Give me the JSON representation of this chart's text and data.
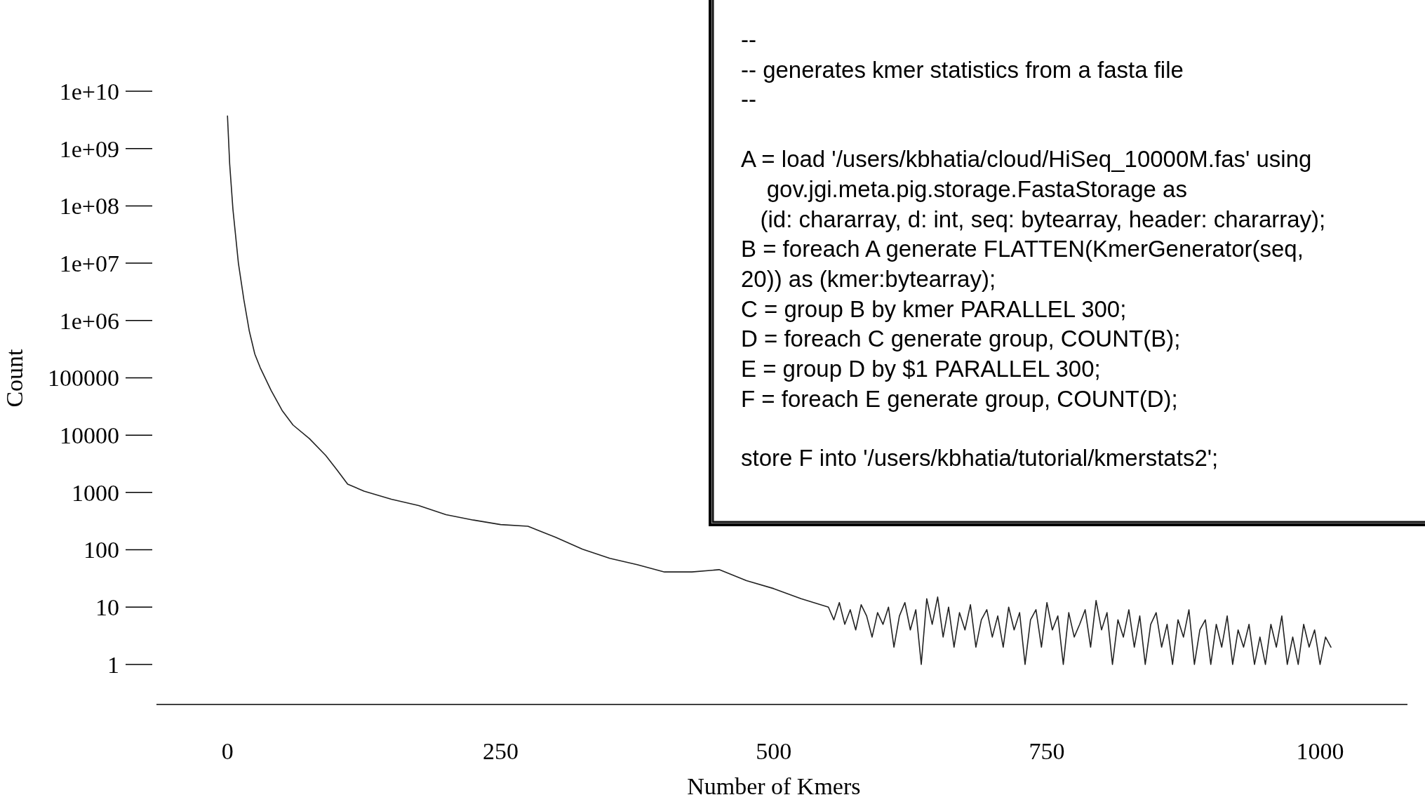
{
  "chart_data": [
    {
      "type": "line",
      "xlabel": "Number of Kmers",
      "ylabel": "Count",
      "log": "y",
      "xlim": [
        -65,
        1080
      ],
      "xticks": [
        0,
        250,
        500,
        750,
        1000
      ],
      "ylim": [
        0.2,
        10000000000
      ],
      "yticks": [
        {
          "value": 1,
          "label": "1"
        },
        {
          "value": 10,
          "label": "10"
        },
        {
          "value": 100,
          "label": "100"
        },
        {
          "value": 1000,
          "label": "1000"
        },
        {
          "value": 10000,
          "label": "10000"
        },
        {
          "value": 100000,
          "label": "100000"
        },
        {
          "value": 1000000,
          "label": "1e+06"
        },
        {
          "value": 10000000,
          "label": "1e+07"
        },
        {
          "value": 100000000,
          "label": "1e+08"
        },
        {
          "value": 1000000000,
          "label": "1e+09"
        },
        {
          "value": 10000000000,
          "label": "1e+10"
        }
      ],
      "grid": false,
      "series": [
        {
          "color": "#222222",
          "x": [
            0,
            2,
            5,
            10,
            15,
            20,
            25,
            30,
            40,
            50,
            60,
            75,
            90,
            100,
            110,
            125,
            150,
            175,
            200,
            225,
            250,
            275,
            300,
            325,
            350,
            375,
            400,
            425,
            450,
            475,
            500,
            525,
            550,
            555,
            560,
            565,
            570,
            575,
            580,
            585,
            590,
            595,
            600,
            605,
            610,
            615,
            620,
            625,
            630,
            635,
            640,
            645,
            650,
            655,
            660,
            665,
            670,
            675,
            680,
            685,
            690,
            695,
            700,
            705,
            710,
            715,
            720,
            725,
            730,
            735,
            740,
            745,
            750,
            755,
            760,
            765,
            770,
            775,
            780,
            785,
            790,
            795,
            800,
            805,
            810,
            815,
            820,
            825,
            830,
            835,
            840,
            845,
            850,
            855,
            860,
            865,
            870,
            875,
            880,
            885,
            890,
            895,
            900,
            905,
            910,
            915,
            920,
            925,
            930,
            935,
            940,
            945,
            950,
            955,
            960,
            965,
            970,
            975,
            980,
            985,
            990,
            995,
            1000,
            1005,
            1010
          ],
          "values": [
            3700000000,
            540000000,
            87000000,
            10000000,
            2300000,
            650000,
            260000,
            150000,
            60000,
            27000,
            15000,
            8700,
            4400,
            2500,
            1400,
            1050,
            760,
            590,
            410,
            330,
            275,
            257,
            166,
            102,
            71,
            55,
            41,
            41,
            45,
            29,
            21,
            14,
            10,
            6,
            12,
            5,
            9,
            4,
            11,
            7,
            3,
            8,
            5,
            10,
            2,
            7,
            12,
            4,
            9,
            1,
            14,
            5,
            15,
            3,
            10,
            2,
            8,
            4,
            11,
            2,
            6,
            9,
            3,
            7,
            2,
            10,
            4,
            8,
            1,
            6,
            9,
            2,
            12,
            4,
            7,
            1,
            8,
            3,
            5,
            9,
            2,
            13,
            4,
            8,
            1,
            6,
            3,
            9,
            2,
            7,
            1,
            5,
            8,
            2,
            5,
            1,
            6,
            3,
            9,
            1,
            4,
            6,
            1,
            5,
            2,
            7,
            1,
            4,
            2,
            5,
            1,
            3,
            1,
            5,
            2,
            7,
            1,
            3,
            1,
            5,
            2,
            4,
            1,
            3,
            2
          ]
        }
      ]
    },
    {
      "type": "other",
      "annotations": [
        "--",
        "-- generates kmer statistics from a fasta file",
        "--",
        "A = load '/users/kbhatia/cloud/HiSeq_10000M.fas' using",
        "    gov.jgi.meta.pig.storage.FastaStorage as",
        "   (id: chararray, d: int, seq: bytearray, header: chararray);",
        "B = foreach A generate FLATTEN(KmerGenerator(seq,",
        "20)) as (kmer:bytearray);",
        "C = group B by kmer PARALLEL 300;",
        "D = foreach C generate group, COUNT(B);",
        "E = group D by $1 PARALLEL 300;",
        "F = foreach E generate group, COUNT(D);",
        "store F into '/users/kbhatia/tutorial/kmerstats2';"
      ]
    }
  ]
}
